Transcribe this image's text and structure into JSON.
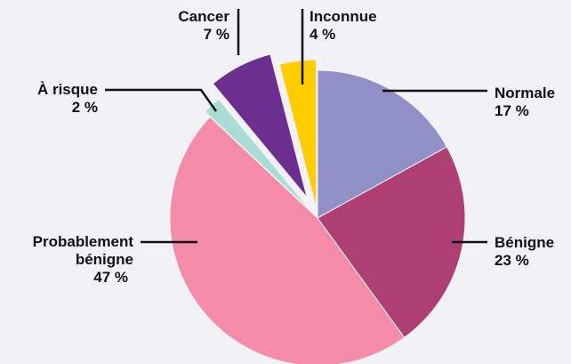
{
  "chart_data": {
    "type": "pie",
    "categories": [
      "Normale",
      "Bénigne",
      "Probablement bénigne",
      "À risque",
      "Cancer",
      "Inconnue"
    ],
    "values": [
      17,
      23,
      47,
      2,
      7,
      4
    ],
    "value_labels": [
      "17 %",
      "23 %",
      "47 %",
      "2 %",
      "7 %",
      "4 %"
    ],
    "colors": [
      "#9190c6",
      "#ad3f72",
      "#f48ba9",
      "#a9dcd3",
      "#6b2f8f",
      "#ffcc00"
    ]
  }
}
